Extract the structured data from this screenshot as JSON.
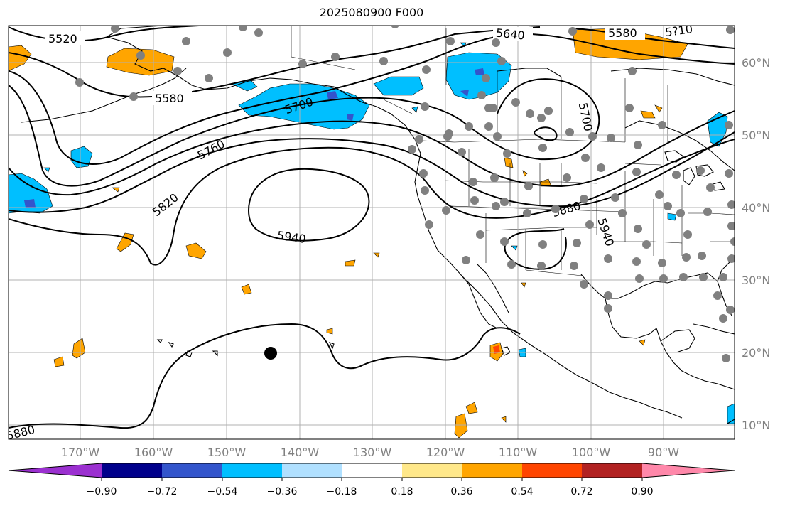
{
  "title": "2025080900 F000",
  "longitude_labels": [
    "170°W",
    "160°W",
    "150°W",
    "140°W",
    "130°W",
    "120°W",
    "110°W",
    "100°W",
    "90°W"
  ],
  "latitude_labels": [
    "60°N",
    "50°N",
    "40°N",
    "30°N",
    "20°N",
    "10°N"
  ],
  "contour_labels": [
    "5520",
    "5580",
    "5580",
    "5640",
    "5700",
    "5700",
    "5760",
    "5820",
    "5880",
    "5880",
    "5940",
    "5940",
    "5?10"
  ],
  "colorbar": {
    "tick_labels": [
      "−0.90",
      "−0.72",
      "−0.54",
      "−0.36",
      "−0.18",
      "0.18",
      "0.36",
      "0.54",
      "0.72",
      "0.90"
    ],
    "colors": [
      "#9b30d0",
      "#00008b",
      "#3355cc",
      "#00bfff",
      "#b0e0ff",
      "#ffffff",
      "#ffe88a",
      "#ffa500",
      "#ff4500",
      "#b22222",
      "#ff88aa"
    ]
  },
  "colors": {
    "geopotential_contour": "#000000",
    "station_dot": "#808080",
    "grid": "#b0b0b0",
    "marker": "#000000"
  }
}
